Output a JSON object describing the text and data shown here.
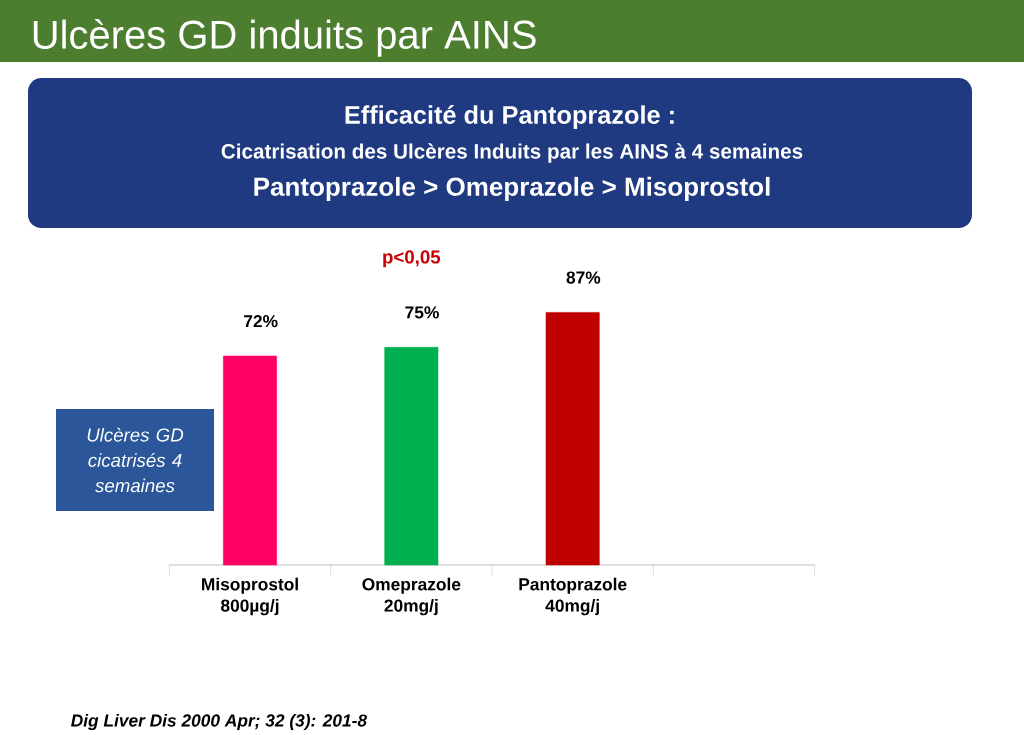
{
  "chart_data": {
    "type": "bar",
    "title": "Ulcères GD  induits par   AINS",
    "subtitle": "Efficacité du Pantoprazole :",
    "ylabel": "Ulcères  GD cicatrisés 4 semaines",
    "categories": [
      "Misoprostol 800µg/j",
      "Omeprazole 20mg/j",
      "Pantoprazole 40mg/j",
      null
    ],
    "values": [
      72,
      75,
      87,
      null
    ],
    "colors": [
      "#ff0066",
      "#00b050",
      "#c00000",
      "#808080"
    ],
    "value_labels": [
      "72%",
      "75%",
      "87%",
      null
    ],
    "annotations": [
      "Cicatrisation des Ulcères Induits par les AINS à 4 semaines",
      "Pantoprazole > Omeprazole > Misoprostol",
      "p<0,05",
      "Dig Liver Dis 2000 Apr; 32 (3): 201-8"
    ]
  }
}
